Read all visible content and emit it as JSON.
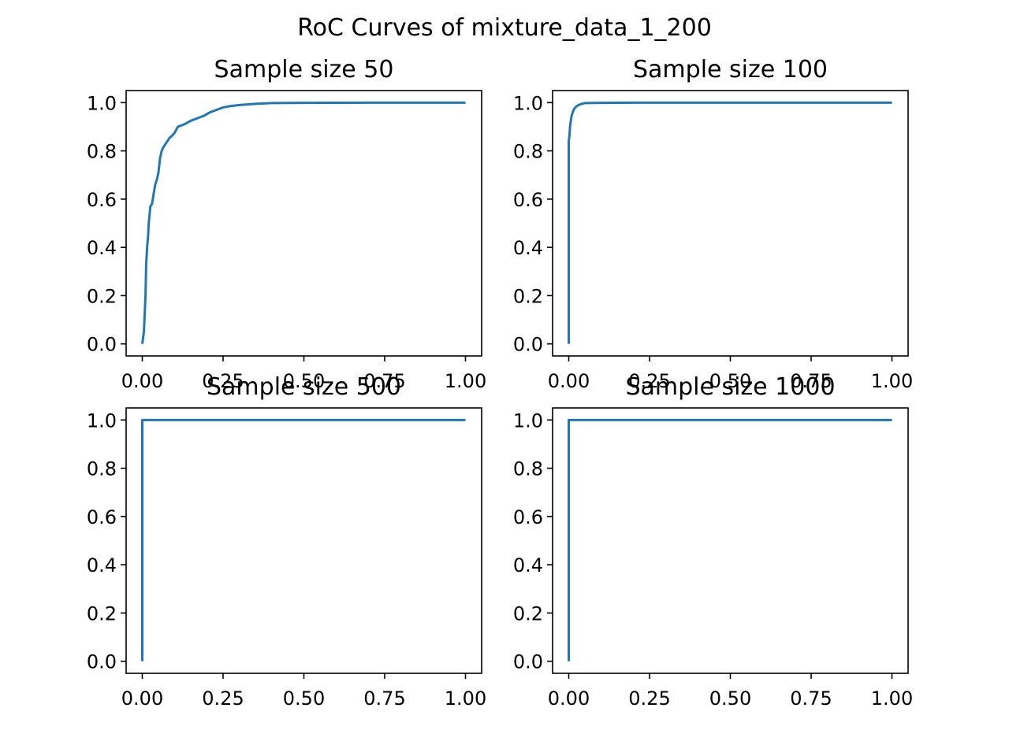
{
  "figure": {
    "suptitle": "RoC Curves of mixture_data_1_200",
    "line_color": "#1f77b4"
  },
  "chart_data": [
    {
      "type": "line",
      "title": "Sample size 50",
      "xlabel": "",
      "ylabel": "",
      "xlim": [
        -0.05,
        1.05
      ],
      "ylim": [
        -0.05,
        1.05
      ],
      "xticks": [
        "0.00",
        "0.25",
        "0.50",
        "0.75",
        "1.00"
      ],
      "yticks": [
        "0.0",
        "0.2",
        "0.4",
        "0.6",
        "0.8",
        "1.0"
      ],
      "grid": false,
      "x": [
        0.0,
        0.005,
        0.01,
        0.012,
        0.015,
        0.018,
        0.02,
        0.025,
        0.03,
        0.035,
        0.04,
        0.045,
        0.05,
        0.055,
        0.06,
        0.065,
        0.07,
        0.075,
        0.08,
        0.085,
        0.09,
        0.1,
        0.11,
        0.12,
        0.13,
        0.15,
        0.17,
        0.19,
        0.21,
        0.23,
        0.25,
        0.27,
        0.3,
        0.35,
        0.4,
        0.5,
        0.7,
        0.85,
        1.0
      ],
      "y": [
        0.0,
        0.05,
        0.2,
        0.33,
        0.4,
        0.45,
        0.5,
        0.57,
        0.58,
        0.62,
        0.66,
        0.68,
        0.71,
        0.77,
        0.8,
        0.815,
        0.825,
        0.835,
        0.845,
        0.855,
        0.86,
        0.875,
        0.9,
        0.905,
        0.91,
        0.925,
        0.935,
        0.945,
        0.96,
        0.97,
        0.98,
        0.985,
        0.99,
        0.995,
        0.998,
        0.999,
        1.0,
        1.0,
        1.0
      ]
    },
    {
      "type": "line",
      "title": "Sample size 100",
      "xlabel": "",
      "ylabel": "",
      "xlim": [
        -0.05,
        1.05
      ],
      "ylim": [
        -0.05,
        1.05
      ],
      "xticks": [
        "0.00",
        "0.25",
        "0.50",
        "0.75",
        "1.00"
      ],
      "yticks": [
        "0.0",
        "0.2",
        "0.4",
        "0.6",
        "0.8",
        "1.0"
      ],
      "grid": false,
      "x": [
        0.0,
        0.0,
        0.002,
        0.004,
        0.006,
        0.008,
        0.01,
        0.015,
        0.02,
        0.03,
        0.04,
        0.05,
        0.1,
        0.2,
        0.5,
        1.0
      ],
      "y": [
        0.0,
        0.84,
        0.86,
        0.9,
        0.92,
        0.94,
        0.95,
        0.97,
        0.98,
        0.99,
        0.995,
        0.998,
        0.999,
        1.0,
        1.0,
        1.0
      ]
    },
    {
      "type": "line",
      "title": "Sample size 500",
      "xlabel": "",
      "ylabel": "",
      "xlim": [
        -0.05,
        1.05
      ],
      "ylim": [
        -0.05,
        1.05
      ],
      "xticks": [
        "0.00",
        "0.25",
        "0.50",
        "0.75",
        "1.00"
      ],
      "yticks": [
        "0.0",
        "0.2",
        "0.4",
        "0.6",
        "0.8",
        "1.0"
      ],
      "grid": false,
      "x": [
        0.0,
        0.0,
        1.0
      ],
      "y": [
        0.0,
        1.0,
        1.0
      ]
    },
    {
      "type": "line",
      "title": "Sample size 1000",
      "xlabel": "",
      "ylabel": "",
      "xlim": [
        -0.05,
        1.05
      ],
      "ylim": [
        -0.05,
        1.05
      ],
      "xticks": [
        "0.00",
        "0.25",
        "0.50",
        "0.75",
        "1.00"
      ],
      "yticks": [
        "0.0",
        "0.2",
        "0.4",
        "0.6",
        "0.8",
        "1.0"
      ],
      "grid": false,
      "x": [
        0.0,
        0.0,
        1.0
      ],
      "y": [
        0.0,
        1.0,
        1.0
      ]
    }
  ]
}
